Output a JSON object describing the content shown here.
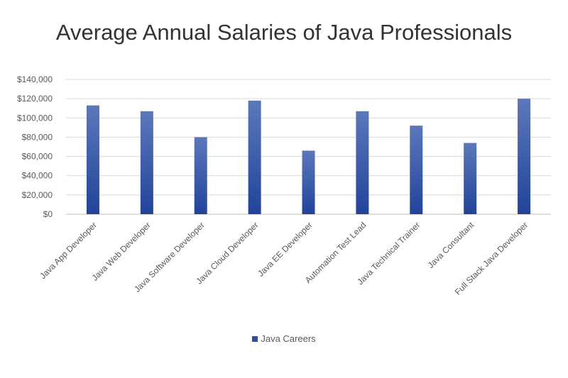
{
  "chart_data": {
    "type": "bar",
    "title": "Average Annual Salaries of Java Professionals",
    "categories": [
      "Java App Developer",
      "Java Web Developer",
      "Java Software Developer",
      "Java Cloud Developer",
      "Java EE Developer",
      "Automation Test Lead",
      "Java Technical Trainer",
      "Java Consultant",
      "Full Stack Java Developer"
    ],
    "series": [
      {
        "name": "Java Careers",
        "values": [
          113000,
          107000,
          80000,
          118000,
          66000,
          107000,
          92000,
          74000,
          120000
        ],
        "color": "#2f4f9c"
      }
    ],
    "yticks": [
      "$0",
      "$20,000",
      "$40,000",
      "$60,000",
      "$80,000",
      "$100,000",
      "$120,000",
      "$140,000"
    ],
    "ylim": [
      0,
      140000
    ],
    "grid": true,
    "legend_position": "bottom",
    "xlabel": "",
    "ylabel": ""
  }
}
